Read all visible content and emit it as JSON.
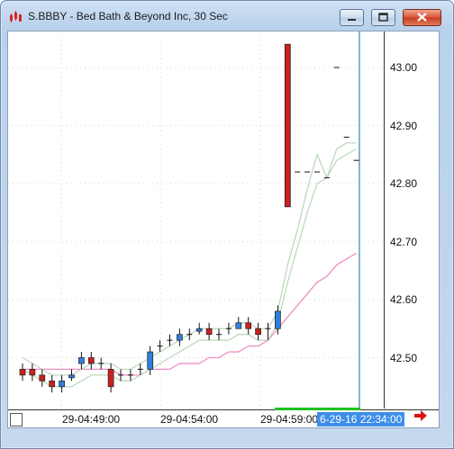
{
  "window": {
    "title": "S.BBBY - Bed Bath & Beyond Inc, 30 Sec",
    "controls": [
      "minimize",
      "maximize",
      "close"
    ]
  },
  "price_axis": {
    "labels": [
      "43.00",
      "42.90",
      "42.80",
      "42.70",
      "42.60",
      "42.50"
    ]
  },
  "time_axis": {
    "labels": [
      "29-04:49:00",
      "29-04:54:00",
      "29-04:59:00"
    ],
    "cursor_label": "6-29-16 22:34:00"
  },
  "colors": {
    "up_candle": "#2f7fdc",
    "down_candle": "#cc1f1f",
    "ma_fast": "#bcd9bc",
    "ma_slow": "#f08ec4",
    "cursor_line": "#2e8aa3",
    "cursor_label_bg": "#3c8ee8"
  },
  "icons": {
    "app": "candles-icon",
    "navigate": "arrow-right-icon"
  },
  "chart_data": {
    "type": "candlestick",
    "ylim": [
      42.44,
      43.06
    ],
    "candles": [
      {
        "o": 42.48,
        "h": 42.49,
        "l": 42.46,
        "c": 42.47,
        "dir": "down"
      },
      {
        "o": 42.48,
        "h": 42.49,
        "l": 42.46,
        "c": 42.47,
        "dir": "down"
      },
      {
        "o": 42.47,
        "h": 42.48,
        "l": 42.45,
        "c": 42.46,
        "dir": "down"
      },
      {
        "o": 42.46,
        "h": 42.47,
        "l": 42.44,
        "c": 42.45,
        "dir": "down"
      },
      {
        "o": 42.45,
        "h": 42.47,
        "l": 42.44,
        "c": 42.46,
        "dir": "up"
      },
      {
        "o": 42.47,
        "h": 42.48,
        "l": 42.46,
        "c": 42.47,
        "dir": "up"
      },
      {
        "o": 42.49,
        "h": 42.51,
        "l": 42.48,
        "c": 42.5,
        "dir": "up"
      },
      {
        "o": 42.5,
        "h": 42.51,
        "l": 42.48,
        "c": 42.49,
        "dir": "down"
      },
      {
        "o": 42.49,
        "h": 42.5,
        "l": 42.48,
        "c": 42.49,
        "dir": "flat"
      },
      {
        "o": 42.48,
        "h": 42.49,
        "l": 42.44,
        "c": 42.45,
        "dir": "down"
      },
      {
        "o": 42.47,
        "h": 42.48,
        "l": 42.46,
        "c": 42.47,
        "dir": "flat"
      },
      {
        "o": 42.47,
        "h": 42.48,
        "l": 42.46,
        "c": 42.47,
        "dir": "flat"
      },
      {
        "o": 42.48,
        "h": 42.49,
        "l": 42.47,
        "c": 42.48,
        "dir": "flat"
      },
      {
        "o": 42.48,
        "h": 42.52,
        "l": 42.47,
        "c": 42.51,
        "dir": "up"
      },
      {
        "o": 42.52,
        "h": 42.53,
        "l": 42.51,
        "c": 42.52,
        "dir": "flat"
      },
      {
        "o": 42.53,
        "h": 42.54,
        "l": 42.52,
        "c": 42.53,
        "dir": "flat"
      },
      {
        "o": 42.53,
        "h": 42.55,
        "l": 42.52,
        "c": 42.54,
        "dir": "up"
      },
      {
        "o": 42.54,
        "h": 42.55,
        "l": 42.53,
        "c": 42.54,
        "dir": "flat"
      },
      {
        "o": 42.55,
        "h": 42.56,
        "l": 42.54,
        "c": 42.55,
        "dir": "up"
      },
      {
        "o": 42.55,
        "h": 42.56,
        "l": 42.53,
        "c": 42.54,
        "dir": "down"
      },
      {
        "o": 42.54,
        "h": 42.55,
        "l": 42.53,
        "c": 42.54,
        "dir": "flat"
      },
      {
        "o": 42.55,
        "h": 42.56,
        "l": 42.54,
        "c": 42.55,
        "dir": "flat"
      },
      {
        "o": 42.56,
        "h": 42.57,
        "l": 42.55,
        "c": 42.55,
        "dir": "up"
      },
      {
        "o": 42.56,
        "h": 42.57,
        "l": 42.54,
        "c": 42.55,
        "dir": "down"
      },
      {
        "o": 42.55,
        "h": 42.56,
        "l": 42.53,
        "c": 42.54,
        "dir": "down"
      },
      {
        "o": 42.55,
        "h": 42.56,
        "l": 42.53,
        "c": 42.55,
        "dir": "flat"
      },
      {
        "o": 42.55,
        "h": 42.59,
        "l": 42.54,
        "c": 42.58,
        "dir": "up"
      },
      {
        "o": 43.04,
        "h": 43.04,
        "l": 42.76,
        "c": 42.76,
        "dir": "down"
      },
      {
        "o": 42.82,
        "h": 42.82,
        "l": 42.82,
        "c": 42.82,
        "dir": "flat"
      },
      {
        "o": 42.82,
        "h": 42.82,
        "l": 42.82,
        "c": 42.82,
        "dir": "flat"
      },
      {
        "o": 42.82,
        "h": 42.82,
        "l": 42.82,
        "c": 42.82,
        "dir": "flat"
      },
      {
        "o": 42.81,
        "h": 42.81,
        "l": 42.81,
        "c": 42.81,
        "dir": "flat"
      },
      {
        "o": 43.0,
        "h": 43.0,
        "l": 43.0,
        "c": 43.0,
        "dir": "flat"
      },
      {
        "o": 42.88,
        "h": 42.88,
        "l": 42.88,
        "c": 42.88,
        "dir": "flat"
      },
      {
        "o": 42.84,
        "h": 42.84,
        "l": 42.84,
        "c": 42.84,
        "dir": "flat"
      }
    ],
    "ma_fast_upper": [
      42.5,
      42.49,
      42.48,
      42.47,
      42.47,
      42.47,
      42.48,
      42.49,
      42.49,
      42.49,
      42.48,
      42.48,
      42.49,
      42.5,
      42.51,
      42.52,
      42.53,
      42.54,
      42.55,
      42.55,
      42.55,
      42.55,
      42.56,
      42.56,
      42.55,
      42.55,
      42.58,
      42.66,
      42.72,
      42.79,
      42.85,
      42.81,
      42.86,
      42.87,
      42.87
    ],
    "ma_fast_lower": [
      42.48,
      42.47,
      42.46,
      42.45,
      42.45,
      42.45,
      42.46,
      42.47,
      42.47,
      42.47,
      42.46,
      42.46,
      42.47,
      42.48,
      42.49,
      42.5,
      42.51,
      42.52,
      42.53,
      42.53,
      42.53,
      42.53,
      42.54,
      42.54,
      42.53,
      42.53,
      42.56,
      42.63,
      42.69,
      42.75,
      42.8,
      42.81,
      42.84,
      42.85,
      42.86
    ],
    "ma_slow": [
      42.48,
      42.48,
      42.48,
      42.48,
      42.48,
      42.48,
      42.48,
      42.48,
      42.48,
      42.48,
      42.47,
      42.47,
      42.47,
      42.48,
      42.48,
      42.48,
      42.49,
      42.49,
      42.49,
      42.5,
      42.5,
      42.51,
      42.51,
      42.52,
      42.52,
      42.53,
      42.55,
      42.57,
      42.59,
      42.61,
      42.63,
      42.64,
      42.66,
      42.67,
      42.68
    ]
  }
}
